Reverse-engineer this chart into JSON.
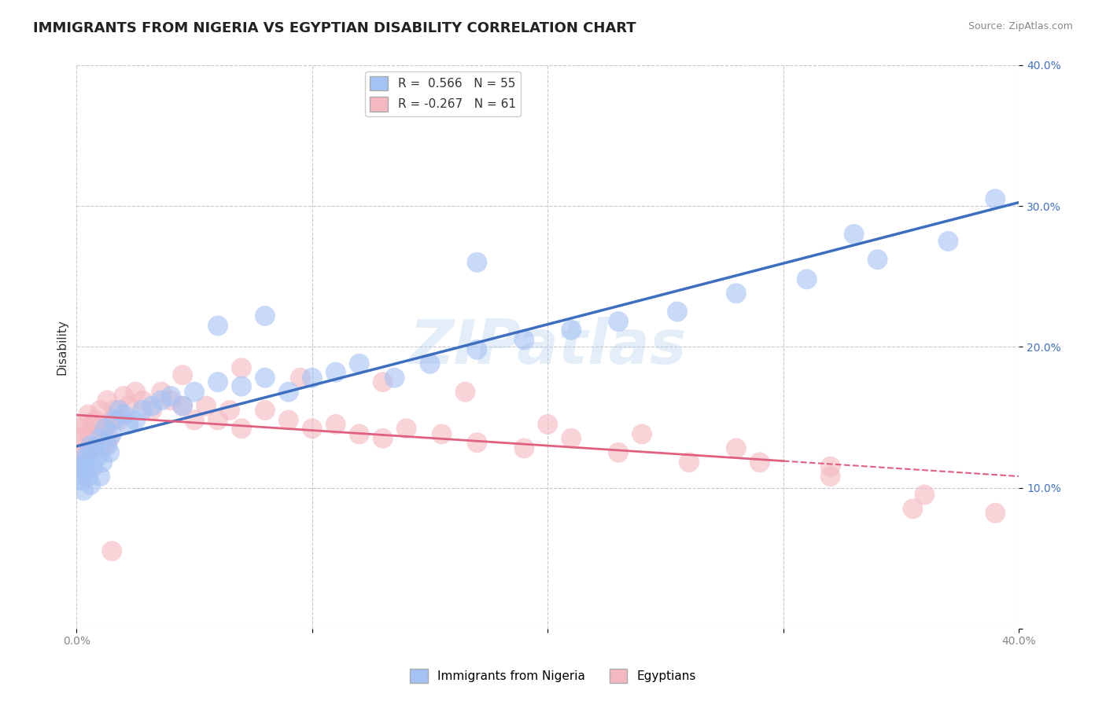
{
  "title": "IMMIGRANTS FROM NIGERIA VS EGYPTIAN DISABILITY CORRELATION CHART",
  "source": "Source: ZipAtlas.com",
  "ylabel": "Disability",
  "xlim": [
    0.0,
    0.4
  ],
  "ylim": [
    0.0,
    0.4
  ],
  "x_ticks": [
    0.0,
    0.1,
    0.2,
    0.3,
    0.4
  ],
  "y_ticks": [
    0.0,
    0.1,
    0.2,
    0.3,
    0.4
  ],
  "grid_color": "#c8c8d0",
  "background_color": "#ffffff",
  "watermark": "ZIPatlas",
  "legend_label1": "R =  0.566   N = 55",
  "legend_label2": "R = -0.267   N = 61",
  "blue_color": "#a4c2f4",
  "pink_color": "#f4b8c1",
  "blue_line_color": "#3d6ebf",
  "pink_line_color": "#e06080",
  "tick_color_blue": "#4472c4",
  "tick_color_gray": "#888888",
  "nigeria_scatter_x": [
    0.001,
    0.002,
    0.002,
    0.003,
    0.003,
    0.004,
    0.004,
    0.005,
    0.005,
    0.006,
    0.006,
    0.007,
    0.008,
    0.009,
    0.01,
    0.01,
    0.011,
    0.012,
    0.013,
    0.014,
    0.015,
    0.016,
    0.018,
    0.02,
    0.022,
    0.025,
    0.028,
    0.032,
    0.036,
    0.04,
    0.045,
    0.05,
    0.06,
    0.07,
    0.08,
    0.09,
    0.1,
    0.11,
    0.12,
    0.135,
    0.15,
    0.17,
    0.19,
    0.21,
    0.23,
    0.255,
    0.28,
    0.31,
    0.34,
    0.37,
    0.06,
    0.08,
    0.17,
    0.33,
    0.39
  ],
  "nigeria_scatter_y": [
    0.11,
    0.105,
    0.115,
    0.098,
    0.12,
    0.112,
    0.118,
    0.108,
    0.125,
    0.102,
    0.13,
    0.115,
    0.128,
    0.122,
    0.135,
    0.108,
    0.118,
    0.142,
    0.13,
    0.125,
    0.138,
    0.148,
    0.155,
    0.152,
    0.145,
    0.148,
    0.155,
    0.158,
    0.162,
    0.165,
    0.158,
    0.168,
    0.175,
    0.172,
    0.178,
    0.168,
    0.178,
    0.182,
    0.188,
    0.178,
    0.188,
    0.198,
    0.205,
    0.212,
    0.218,
    0.225,
    0.238,
    0.248,
    0.262,
    0.275,
    0.215,
    0.222,
    0.26,
    0.28,
    0.305
  ],
  "egypt_scatter_x": [
    0.001,
    0.002,
    0.002,
    0.003,
    0.003,
    0.004,
    0.005,
    0.005,
    0.006,
    0.007,
    0.008,
    0.009,
    0.01,
    0.011,
    0.012,
    0.013,
    0.014,
    0.015,
    0.016,
    0.018,
    0.02,
    0.022,
    0.025,
    0.028,
    0.032,
    0.036,
    0.04,
    0.045,
    0.05,
    0.055,
    0.06,
    0.065,
    0.07,
    0.08,
    0.09,
    0.1,
    0.11,
    0.12,
    0.13,
    0.14,
    0.155,
    0.17,
    0.19,
    0.21,
    0.23,
    0.26,
    0.29,
    0.32,
    0.355,
    0.39,
    0.045,
    0.07,
    0.095,
    0.13,
    0.165,
    0.2,
    0.24,
    0.28,
    0.32,
    0.36,
    0.015
  ],
  "egypt_scatter_y": [
    0.135,
    0.128,
    0.142,
    0.118,
    0.145,
    0.125,
    0.138,
    0.152,
    0.128,
    0.145,
    0.148,
    0.138,
    0.155,
    0.128,
    0.142,
    0.162,
    0.135,
    0.148,
    0.155,
    0.148,
    0.165,
    0.158,
    0.168,
    0.162,
    0.155,
    0.168,
    0.162,
    0.158,
    0.148,
    0.158,
    0.148,
    0.155,
    0.142,
    0.155,
    0.148,
    0.142,
    0.145,
    0.138,
    0.135,
    0.142,
    0.138,
    0.132,
    0.128,
    0.135,
    0.125,
    0.118,
    0.118,
    0.108,
    0.085,
    0.082,
    0.18,
    0.185,
    0.178,
    0.175,
    0.168,
    0.145,
    0.138,
    0.128,
    0.115,
    0.095,
    0.055
  ],
  "title_fontsize": 13,
  "axis_label_fontsize": 11,
  "tick_fontsize": 10,
  "legend_fontsize": 11
}
